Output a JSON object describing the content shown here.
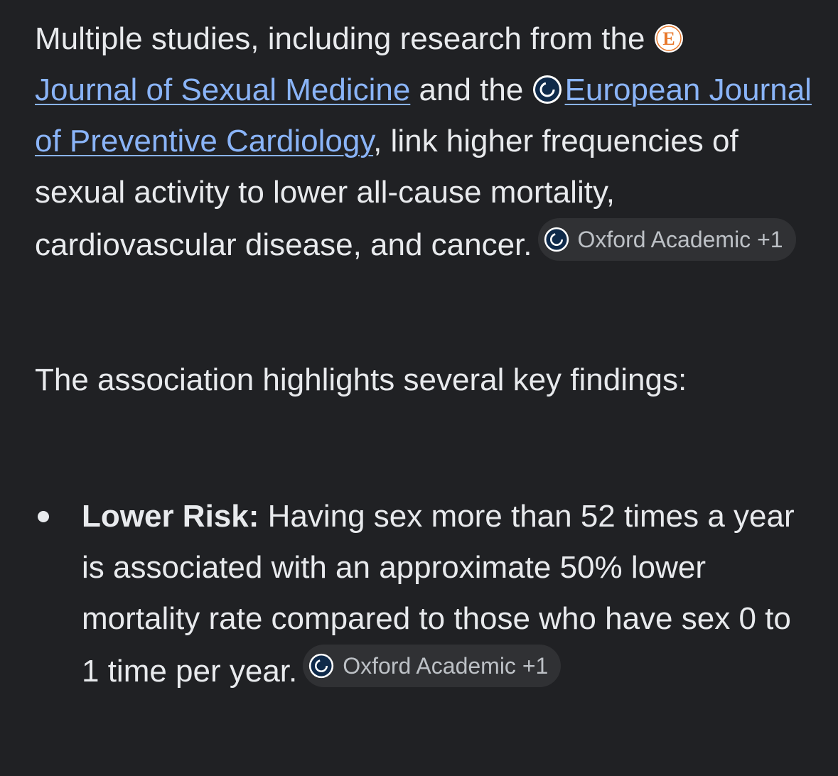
{
  "paragraph1": {
    "text_a": "Multiple studies, including research from the ",
    "source1_icon": "e-letter-icon",
    "link1": "Journal of Sexual Medicine",
    "text_b": " and the ",
    "source2_icon": "oxford-academic-icon",
    "link2": "European Journal of Preventive Cardiology",
    "text_c": ", link higher frequencies of sexual activity to lower all-cause mortality, cardiovascular disease, and cancer.",
    "chip_label": "Oxford Academic +1"
  },
  "paragraph2": {
    "text": "The association highlights several key findings:"
  },
  "bullets": [
    {
      "title": "Lower Risk:",
      "text": " Having sex more than 52 times a year is associated with an approximate 50% lower mortality rate compared to those who have sex 0 to 1 time per year.",
      "chip_label": "Oxford Academic +1"
    }
  ],
  "colors": {
    "background": "#202124",
    "text": "#e8eaed",
    "link": "#8ab4f8",
    "chip_bg": "#303134",
    "chip_text": "#bdc1c6"
  }
}
